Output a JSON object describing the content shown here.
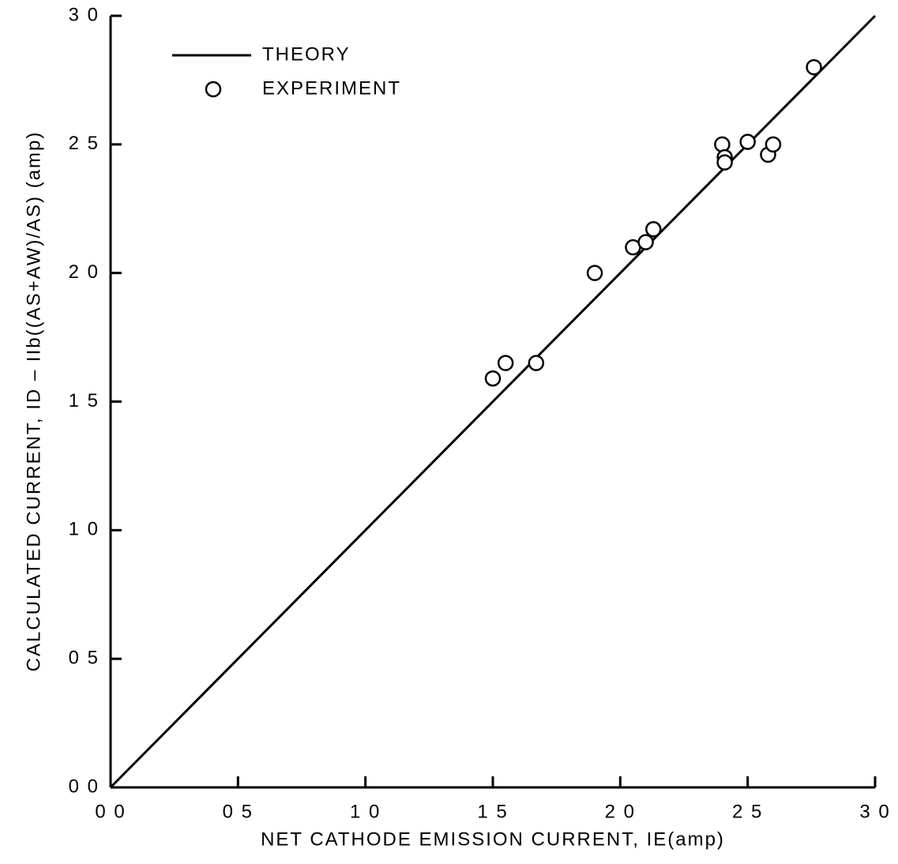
{
  "chart_data": {
    "type": "scatter",
    "xlabel": "NET CATHODE EMISSION CURRENT, IE(amp)",
    "ylabel": "CALCULATED CURRENT, ID – IIb((AS+AW)/AS) (amp)",
    "xlim": [
      0,
      3.0
    ],
    "ylim": [
      0,
      3.0
    ],
    "xticks": [
      {
        "value": 0,
        "label": "0 0"
      },
      {
        "value": 0.5,
        "label": "0 5"
      },
      {
        "value": 1.0,
        "label": "1 0"
      },
      {
        "value": 1.5,
        "label": "1 5"
      },
      {
        "value": 2.0,
        "label": "2 0"
      },
      {
        "value": 2.5,
        "label": "2 5"
      },
      {
        "value": 3.0,
        "label": "3 0"
      }
    ],
    "yticks": [
      {
        "value": 0,
        "label": "0 0"
      },
      {
        "value": 0.5,
        "label": "0 5"
      },
      {
        "value": 1.0,
        "label": "1 0"
      },
      {
        "value": 1.5,
        "label": "1 5"
      },
      {
        "value": 2.0,
        "label": "2 0"
      },
      {
        "value": 2.5,
        "label": "2 5"
      },
      {
        "value": 3.0,
        "label": "3 0"
      }
    ],
    "grid": false,
    "legend": "upper left",
    "series": [
      {
        "name": "THEORY",
        "type": "line",
        "color": "#000000",
        "x": [
          0,
          3.0
        ],
        "values": [
          0,
          3.0
        ]
      },
      {
        "name": "EXPERIMENT",
        "type": "scatter",
        "color": "#000000",
        "x": [
          1.5,
          1.55,
          1.67,
          1.9,
          2.05,
          2.1,
          2.13,
          2.4,
          2.41,
          2.41,
          2.5,
          2.58,
          2.6,
          2.76
        ],
        "values": [
          1.59,
          1.65,
          1.65,
          2.0,
          2.1,
          2.12,
          2.17,
          2.5,
          2.45,
          2.43,
          2.51,
          2.46,
          2.5,
          2.8
        ]
      }
    ]
  }
}
